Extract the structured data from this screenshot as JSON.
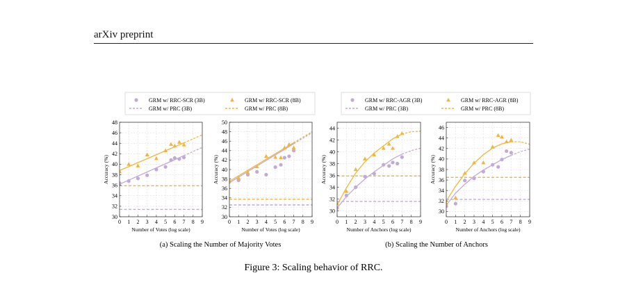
{
  "header": {
    "title": "arXiv preprint"
  },
  "figure": {
    "caption": "Figure 3: Scaling behavior of RRC.",
    "subcaptions": [
      "(a) Scaling the Number of Majority Votes",
      "(b) Scaling the Number of Anchors"
    ]
  },
  "legends": [
    {
      "entries": [
        "GRM w/ RRC-SCR (3B)",
        "GRM w/ RRC-SCR (8B)",
        "GRM w/ PRC (3B)",
        "GRM w/ PRC (8B)"
      ]
    },
    {
      "entries": [
        "GRM w/ RRC-AGR (3B)",
        "GRM w/ RRC-AGR (8B)",
        "GRM w/ PRC (3B)",
        "GRM w/ PRC (8B)"
      ]
    }
  ],
  "colors": {
    "purple": "#c3a9d8",
    "orange": "#f0b63c"
  },
  "chart_data": [
    {
      "type": "scatter",
      "xlabel": "Number of Votes (log scale)",
      "ylabel": "Accuracy (%)",
      "xlim": [
        0,
        9
      ],
      "ylim": [
        30,
        48
      ],
      "xticks": [
        0,
        1,
        2,
        3,
        4,
        5,
        6,
        7,
        8,
        9
      ],
      "yticks": [
        30,
        32,
        34,
        36,
        38,
        40,
        42,
        44,
        46,
        48
      ],
      "series": [
        {
          "name": "GRM w/ RRC-SCR (3B)",
          "marker": "circle",
          "color": "#c3a9d8",
          "x": [
            0,
            1,
            2,
            3,
            4,
            5,
            5.6,
            6,
            6.5,
            7
          ],
          "y": [
            36.4,
            36.8,
            37.3,
            37.9,
            39.0,
            39.5,
            40.8,
            41.2,
            41.0,
            41.3
          ],
          "trend": [
            [
              0,
              36.2
            ],
            [
              9,
              43.2
            ]
          ]
        },
        {
          "name": "GRM w/ RRC-SCR (8B)",
          "marker": "triangle",
          "color": "#f0b63c",
          "x": [
            0,
            1,
            2,
            3,
            4,
            5,
            5.6,
            6,
            6.5,
            7
          ],
          "y": [
            38.6,
            40.0,
            39.7,
            41.8,
            41.1,
            42.6,
            43.8,
            43.5,
            44.2,
            43.7
          ],
          "trend": [
            [
              0,
              38.8
            ],
            [
              9,
              45.6
            ]
          ]
        },
        {
          "name": "GRM w/ PRC (3B)",
          "color": "#c3a9d8",
          "baseline": 31.4
        },
        {
          "name": "GRM w/ PRC (8B)",
          "color": "#f0b63c",
          "baseline": 35.9
        }
      ]
    },
    {
      "type": "scatter",
      "xlabel": "Number of Votes (log scale)",
      "ylabel": "Accuracy (%)",
      "xlim": [
        0,
        9
      ],
      "ylim": [
        30,
        50
      ],
      "xticks": [
        0,
        1,
        2,
        3,
        4,
        5,
        6,
        7,
        8,
        9
      ],
      "yticks": [
        30,
        32,
        34,
        36,
        38,
        40,
        42,
        44,
        46,
        48,
        50
      ],
      "series": [
        {
          "name": "GRM w/ RRC-SCR (3B)",
          "marker": "circle",
          "color": "#c3a9d8",
          "x": [
            0,
            1,
            2,
            3,
            4,
            5,
            5.6,
            6,
            6.5,
            7
          ],
          "y": [
            37.4,
            37.7,
            38.9,
            39.5,
            38.9,
            40.5,
            41.0,
            42.5,
            42.8,
            44.0
          ],
          "trend": [
            [
              0,
              37.2
            ],
            [
              9,
              47.8
            ]
          ]
        },
        {
          "name": "GRM w/ RRC-SCR (8B)",
          "marker": "triangle",
          "color": "#f0b63c",
          "x": [
            0,
            1,
            2,
            3,
            4,
            5,
            5.6,
            6,
            6.5,
            7
          ],
          "y": [
            37.6,
            38.2,
            39.4,
            40.6,
            42.8,
            42.6,
            42.5,
            44.6,
            45.3,
            44.6
          ],
          "trend": [
            [
              0,
              37.5
            ],
            [
              9,
              48.0
            ]
          ]
        },
        {
          "name": "GRM w/ PRC (3B)",
          "color": "#c3a9d8",
          "baseline": 32.5
        },
        {
          "name": "GRM w/ PRC (8B)",
          "color": "#f0b63c",
          "baseline": 33.7
        }
      ]
    },
    {
      "type": "scatter",
      "xlabel": "Number of Anchors (log scale)",
      "ylabel": "Accuracy (%)",
      "xlim": [
        0,
        9
      ],
      "ylim": [
        29,
        45
      ],
      "xticks": [
        0,
        1,
        2,
        3,
        4,
        5,
        6,
        7,
        8,
        9
      ],
      "yticks": [
        30,
        32,
        34,
        36,
        38,
        40,
        42,
        44
      ],
      "series": [
        {
          "name": "GRM w/ RRC-AGR (3B)",
          "marker": "circle",
          "color": "#c3a9d8",
          "x": [
            0,
            1,
            2,
            3,
            4,
            5,
            5.6,
            6,
            6.5,
            7
          ],
          "y": [
            30.5,
            32.6,
            34.0,
            35.8,
            36.3,
            37.8,
            37.6,
            38.2,
            38.0,
            39.1
          ],
          "trend": [
            [
              0,
              30.5
            ],
            [
              1,
              32.4
            ],
            [
              2,
              34.0
            ],
            [
              3,
              35.4
            ],
            [
              4,
              36.6
            ],
            [
              5,
              37.7
            ],
            [
              6,
              38.8
            ],
            [
              7,
              39.6
            ],
            [
              8,
              40.2
            ],
            [
              9,
              40.6
            ]
          ]
        },
        {
          "name": "GRM w/ RRC-AGR (8B)",
          "marker": "triangle",
          "color": "#f0b63c",
          "x": [
            0,
            1,
            2,
            3,
            4,
            5,
            5.6,
            6,
            6.5,
            7
          ],
          "y": [
            31.2,
            33.3,
            37.0,
            38.8,
            39.5,
            40.6,
            41.3,
            40.6,
            42.6,
            43.1
          ],
          "trend": [
            [
              0,
              31.0
            ],
            [
              1,
              33.9
            ],
            [
              2,
              36.4
            ],
            [
              3,
              38.3
            ],
            [
              4,
              39.8
            ],
            [
              5,
              41.0
            ],
            [
              6,
              42.2
            ],
            [
              7,
              43.0
            ],
            [
              8,
              43.4
            ],
            [
              9,
              43.5
            ]
          ]
        },
        {
          "name": "GRM w/ PRC (3B)",
          "color": "#c3a9d8",
          "baseline": 31.6
        },
        {
          "name": "GRM w/ PRC (8B)",
          "color": "#f0b63c",
          "baseline": 35.9
        }
      ]
    },
    {
      "type": "scatter",
      "xlabel": "Number of Anchors (log scale)",
      "ylabel": "Accuracy (%)",
      "xlim": [
        0,
        9
      ],
      "ylim": [
        29,
        47
      ],
      "xticks": [
        0,
        1,
        2,
        3,
        4,
        5,
        6,
        7,
        8,
        9
      ],
      "yticks": [
        30,
        32,
        34,
        36,
        38,
        40,
        42,
        44,
        46
      ],
      "series": [
        {
          "name": "GRM w/ RRC-AGR (3B)",
          "marker": "circle",
          "color": "#c3a9d8",
          "x": [
            0,
            1,
            2,
            3,
            4,
            5,
            5.6,
            6,
            6.5,
            7
          ],
          "y": [
            31.0,
            31.5,
            35.9,
            36.3,
            37.6,
            38.9,
            38.5,
            39.9,
            41.5,
            41.2
          ],
          "trend": [
            [
              0,
              31.2
            ],
            [
              1,
              33.5
            ],
            [
              2,
              35.2
            ],
            [
              3,
              36.7
            ],
            [
              4,
              37.9
            ],
            [
              5,
              38.9
            ],
            [
              6,
              39.9
            ],
            [
              7,
              40.7
            ],
            [
              8,
              41.4
            ],
            [
              9,
              41.9
            ]
          ]
        },
        {
          "name": "GRM w/ RRC-AGR (8B)",
          "marker": "triangle",
          "color": "#f0b63c",
          "x": [
            0,
            1,
            2,
            3,
            4,
            5,
            5.6,
            6,
            6.5,
            7
          ],
          "y": [
            31.6,
            32.6,
            37.3,
            39.3,
            39.3,
            42.3,
            44.5,
            44.2,
            43.3,
            43.6
          ],
          "trend": [
            [
              0,
              32.0
            ],
            [
              1,
              34.8
            ],
            [
              2,
              37.2
            ],
            [
              3,
              39.2
            ],
            [
              4,
              40.8
            ],
            [
              5,
              42.1
            ],
            [
              6,
              42.9
            ],
            [
              7,
              43.3
            ],
            [
              8,
              43.3
            ],
            [
              9,
              42.8
            ]
          ]
        },
        {
          "name": "GRM w/ PRC (3B)",
          "color": "#c3a9d8",
          "baseline": 32.3
        },
        {
          "name": "GRM w/ PRC (8B)",
          "color": "#f0b63c",
          "baseline": 36.5
        }
      ]
    }
  ]
}
